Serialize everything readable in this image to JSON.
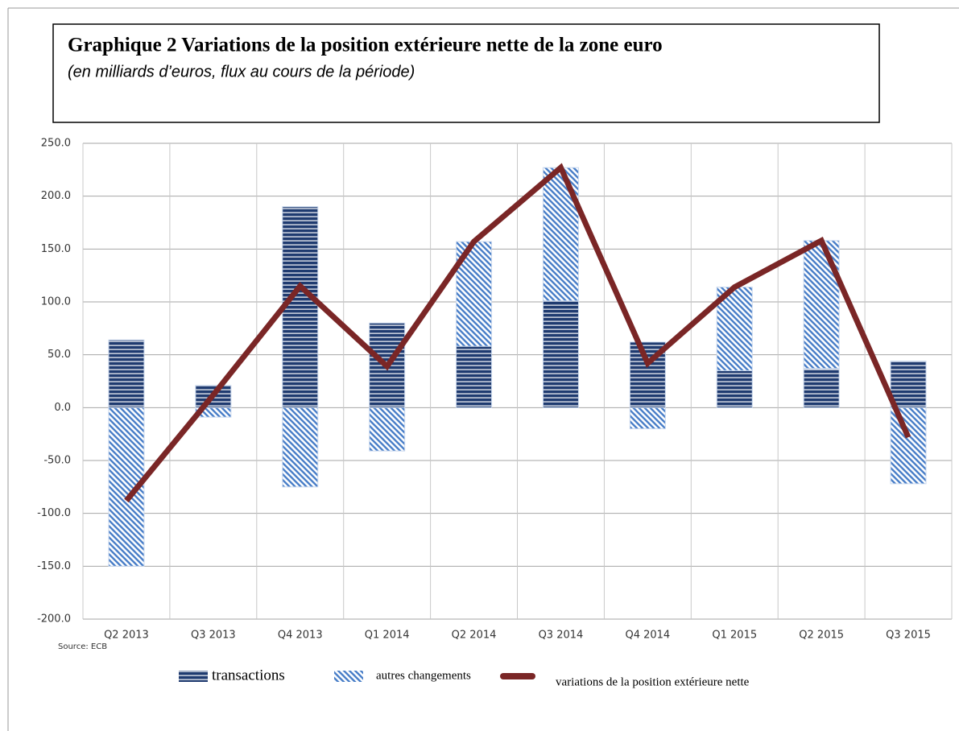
{
  "chart_data": {
    "type": "bar",
    "stacked": true,
    "title": "Graphique 2 Variations de la position extérieure nette de la zone euro",
    "subtitle": "(en milliards d’euros, flux au cours de la période)",
    "source": "Source: ECB",
    "categories": [
      "Q2 2013",
      "Q3 2013",
      "Q4 2013",
      "Q1 2014",
      "Q2 2014",
      "Q3 2014",
      "Q4 2014",
      "Q1 2015",
      "Q2 2015",
      "Q3 2015"
    ],
    "series": [
      {
        "name": "transactions",
        "type": "bar",
        "color": "#1f3b70",
        "values": [
          64,
          21,
          190,
          80,
          58,
          101,
          62,
          35,
          37,
          44
        ]
      },
      {
        "name": "autres changements",
        "type": "bar",
        "color": "#4a7fc8",
        "values": [
          -150,
          -9,
          -75,
          -41,
          99,
          126,
          -20,
          79,
          121,
          -72
        ]
      },
      {
        "name": "variations de la position extérieure nette",
        "type": "line",
        "color": "#7a2626",
        "values": [
          -88,
          12,
          115,
          39,
          157,
          227,
          42,
          114,
          158,
          -28
        ]
      }
    ],
    "ylim": [
      -200,
      250
    ],
    "yticks": [
      {
        "value": -200,
        "label": "-200.0"
      },
      {
        "value": -150,
        "label": "-150.0"
      },
      {
        "value": -100,
        "label": "-100.0"
      },
      {
        "value": -50,
        "label": "-50.0"
      },
      {
        "value": 0,
        "label": "0.0"
      },
      {
        "value": 50,
        "label": "50.0"
      },
      {
        "value": 100,
        "label": "100.0"
      },
      {
        "value": 150,
        "label": "150.0"
      },
      {
        "value": 200,
        "label": "200.0"
      },
      {
        "value": 250,
        "label": "250.0"
      }
    ],
    "grid": true
  }
}
